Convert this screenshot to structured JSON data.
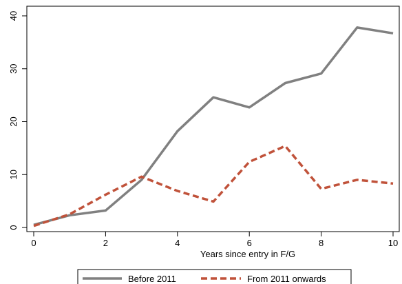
{
  "chart_data": {
    "type": "line",
    "title": "",
    "xlabel": "Years since entry in F/G",
    "ylabel": "",
    "xlim": [
      0,
      10
    ],
    "ylim": [
      0,
      40
    ],
    "x_ticks": [
      0,
      2,
      4,
      6,
      8,
      10
    ],
    "y_ticks": [
      0,
      10,
      20,
      30,
      40
    ],
    "grid": false,
    "legend_position": "bottom",
    "x": [
      0,
      1,
      2,
      3,
      4,
      5,
      6,
      7,
      8,
      9,
      10
    ],
    "series": [
      {
        "name": "Before 2011",
        "color": "#808080",
        "style": "solid",
        "values": [
          0.5,
          2.3,
          3.2,
          9.0,
          18.2,
          24.6,
          22.7,
          27.3,
          29.1,
          37.8,
          36.7
        ]
      },
      {
        "name": "From 2011 onwards",
        "color": "#c0523a",
        "style": "dashed",
        "values": [
          0.3,
          2.5,
          6.2,
          9.6,
          6.9,
          4.9,
          12.4,
          15.4,
          7.3,
          9.0,
          8.3
        ]
      }
    ]
  }
}
